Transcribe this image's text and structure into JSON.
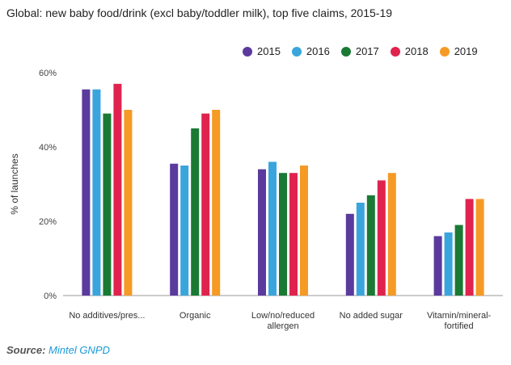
{
  "title": "Global: new baby food/drink (excl baby/toddler milk), top five claims, 2015-19",
  "source_label": "Source:",
  "source_name": "Mintel GNPD",
  "chart_data": {
    "type": "bar",
    "ylabel": "% of launches",
    "ylim": [
      0,
      60
    ],
    "yticks": [
      "0%",
      "20%",
      "40%",
      "60%"
    ],
    "ytick_values": [
      0,
      20,
      40,
      60
    ],
    "categories": [
      [
        "No additives/pres..."
      ],
      [
        "Organic"
      ],
      [
        "Low/no/reduced",
        "allergen"
      ],
      [
        "No added sugar"
      ],
      [
        "Vitamin/mineral-",
        "fortified"
      ]
    ],
    "legend_position": "top-right",
    "grid": false,
    "series": [
      {
        "name": "2015",
        "color": "#5b3a9e",
        "values": [
          55.5,
          35.5,
          34,
          22,
          16
        ]
      },
      {
        "name": "2016",
        "color": "#3aa5dc",
        "values": [
          55.5,
          35,
          36,
          25,
          17
        ]
      },
      {
        "name": "2017",
        "color": "#1a7a34",
        "values": [
          49,
          45,
          33,
          27,
          19
        ]
      },
      {
        "name": "2018",
        "color": "#e0234e",
        "values": [
          57,
          49,
          33,
          31,
          26
        ]
      },
      {
        "name": "2019",
        "color": "#f59a25",
        "values": [
          50,
          50,
          35,
          33,
          26
        ]
      }
    ]
  }
}
